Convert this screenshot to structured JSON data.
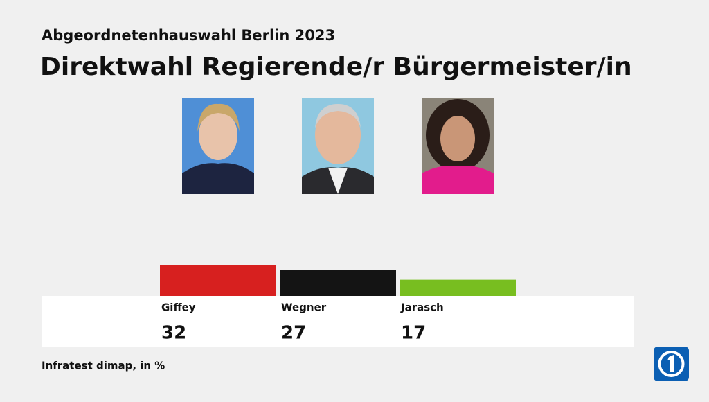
{
  "chart_data": {
    "type": "bar",
    "subtitle": "Abgeordnetenhauswahl Berlin 2023",
    "title": "Direktwahl Regierende/r Bürgermeister/in",
    "categories": [
      "Giffey",
      "Wegner",
      "Jarasch"
    ],
    "values": [
      32,
      27,
      17
    ],
    "colors": [
      "#d7201f",
      "#141414",
      "#78be20"
    ],
    "source": "Infratest dimap, in %"
  }
}
